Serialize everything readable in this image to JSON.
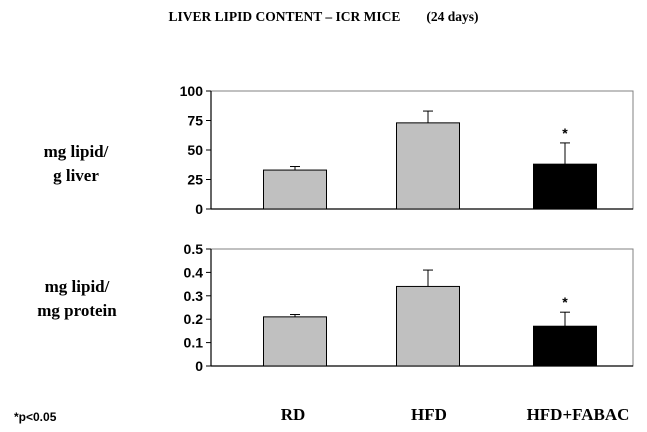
{
  "title": {
    "main": "LIVER LIPID CONTENT – ICR MICE",
    "period": "(24 days)"
  },
  "footnote": "*p<0.05",
  "colors": {
    "grey_bar": "#c0c0c0",
    "black_bar": "#000000",
    "axis": "#000000"
  },
  "chart_data": [
    {
      "type": "bar",
      "categories": [
        "RD",
        "HFD",
        "HFD+FABAC"
      ],
      "values": [
        33,
        73,
        38
      ],
      "errors": [
        3,
        10,
        18
      ],
      "significance": [
        "",
        "",
        "*"
      ],
      "ylabel": "mg lipid/\ng liver",
      "ylabel_lines": [
        "mg lipid/",
        "g liver"
      ],
      "ylim": [
        0,
        100
      ],
      "yticks": [
        0,
        25,
        50,
        75,
        100
      ],
      "ytick_labels": [
        "0",
        "25",
        "50",
        "75",
        "100"
      ],
      "bar_colors": [
        "#c0c0c0",
        "#c0c0c0",
        "#000000"
      ],
      "grid": false
    },
    {
      "type": "bar",
      "categories": [
        "RD",
        "HFD",
        "HFD+FABAC"
      ],
      "values": [
        0.21,
        0.34,
        0.17
      ],
      "errors": [
        0.01,
        0.07,
        0.06
      ],
      "significance": [
        "",
        "",
        "*"
      ],
      "ylabel": "mg lipid/\nmg protein",
      "ylabel_lines": [
        "mg lipid/",
        "mg protein"
      ],
      "ylim": [
        0,
        0.5
      ],
      "yticks": [
        0,
        0.1,
        0.2,
        0.3,
        0.4,
        0.5
      ],
      "ytick_labels": [
        "0",
        "0.1",
        "0.2",
        "0.3",
        "0.4",
        "0.5"
      ],
      "bar_colors": [
        "#c0c0c0",
        "#c0c0c0",
        "#000000"
      ],
      "grid": false
    }
  ]
}
